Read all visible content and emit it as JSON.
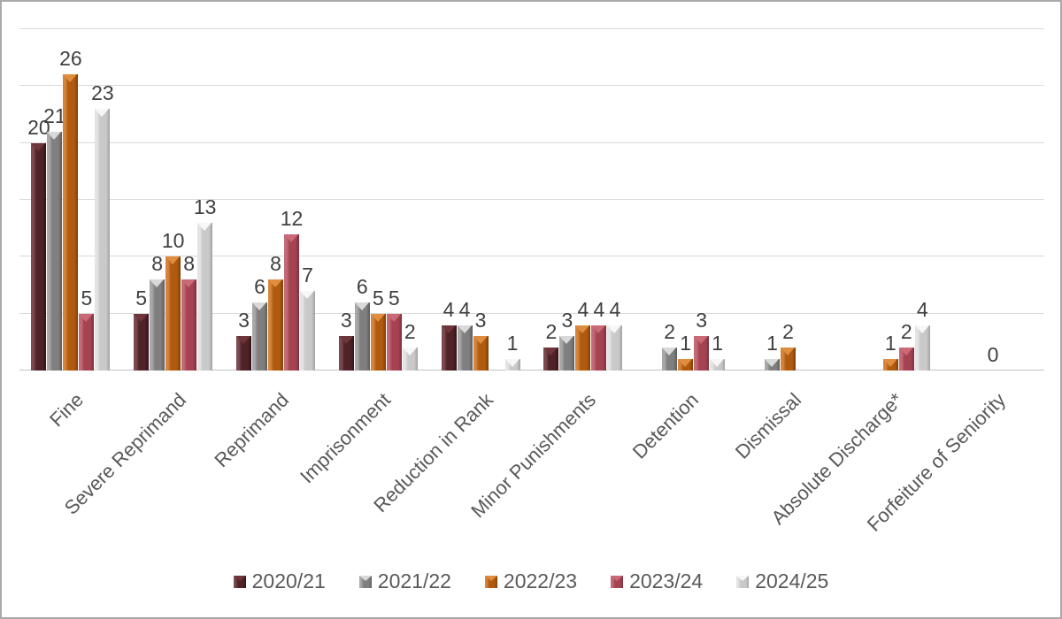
{
  "chart_data": {
    "type": "bar",
    "title": "",
    "xlabel": "",
    "ylabel": "",
    "ylim": [
      0,
      30
    ],
    "gridline_step": 5,
    "grid": true,
    "legend_position": "bottom",
    "categories": [
      "Fine",
      "Severe Reprimand",
      "Reprimand",
      "Imprisonment",
      "Reduction in Rank",
      "Minor Punishments",
      "Detention",
      "Dismissal",
      "Absolute Discharge*",
      "Forfeiture of Seniority"
    ],
    "series": [
      {
        "name": "2020/21",
        "color": "#4f2327",
        "light": "#7b4a4e",
        "dark": "#33121a",
        "chev": "#6e353b",
        "values": [
          20,
          5,
          3,
          3,
          4,
          2,
          null,
          null,
          null,
          null
        ]
      },
      {
        "name": "2021/22",
        "color": "#7f7f7f",
        "light": "#a8a8a8",
        "dark": "#5c5c5c",
        "chev": "#d9d9d9",
        "values": [
          21,
          8,
          6,
          6,
          4,
          3,
          2,
          1,
          null,
          null
        ]
      },
      {
        "name": "2022/23",
        "color": "#b05a10",
        "light": "#d5843b",
        "dark": "#7e3f07",
        "chev": "#df8d3f",
        "values": [
          26,
          10,
          8,
          5,
          3,
          4,
          1,
          2,
          1,
          0
        ]
      },
      {
        "name": "2023/24",
        "color": "#a54352",
        "light": "#c26b77",
        "dark": "#7c2f3c",
        "chev": "#cb6a76",
        "values": [
          5,
          8,
          12,
          5,
          null,
          4,
          3,
          null,
          2,
          null
        ]
      },
      {
        "name": "2024/25",
        "color": "#c9c9c9",
        "light": "#e4e4e4",
        "dark": "#a2a2a2",
        "chev": "#f7f7f7",
        "values": [
          23,
          13,
          7,
          2,
          1,
          4,
          1,
          null,
          4,
          null
        ]
      }
    ]
  },
  "styles": {
    "background": "#ffffff",
    "border_color": "#a9a9a9",
    "grid_color": "#d9d9d9",
    "baseline_color": "#c3c3c3",
    "value_label_color": "#3f3f3f",
    "axis_label_color": "#595959",
    "legend_text_color": "#595959"
  }
}
